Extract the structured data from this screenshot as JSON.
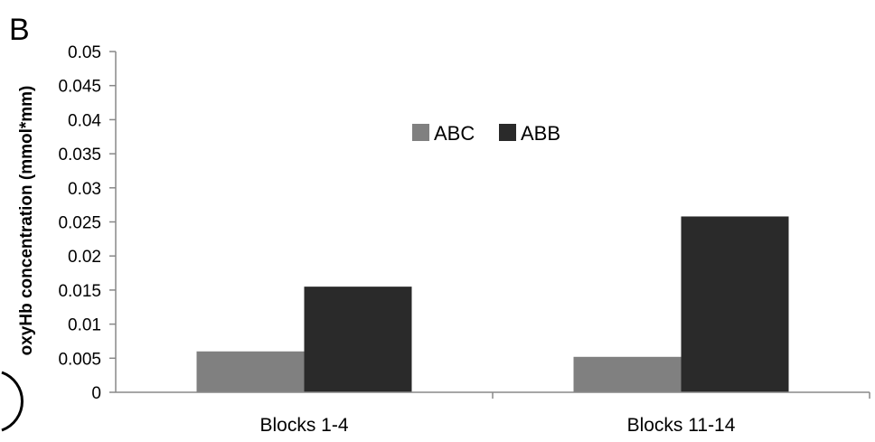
{
  "panel_label": "B",
  "chart_data": {
    "type": "bar",
    "categories": [
      "Blocks 1-4",
      "Blocks 11-14"
    ],
    "series": [
      {
        "name": "ABC",
        "values": [
          0.006,
          0.0052
        ],
        "color": "#808080"
      },
      {
        "name": "ABB",
        "values": [
          0.0155,
          0.0258
        ],
        "color": "#2a2a2a"
      }
    ],
    "xlabel": "",
    "ylabel": "oxyHb concentration (mmol*mm)",
    "ylim": [
      0,
      0.05
    ],
    "yticks": [
      0,
      0.005,
      0.01,
      0.015,
      0.02,
      0.025,
      0.03,
      0.035,
      0.04,
      0.045,
      0.05
    ],
    "ytick_labels": [
      "0",
      "0.005",
      "0.01",
      "0.015",
      "0.02",
      "0.025",
      "0.03",
      "0.035",
      "0.04",
      "0.045",
      "0.05"
    ],
    "grid": false,
    "legend_position": "top-center"
  }
}
